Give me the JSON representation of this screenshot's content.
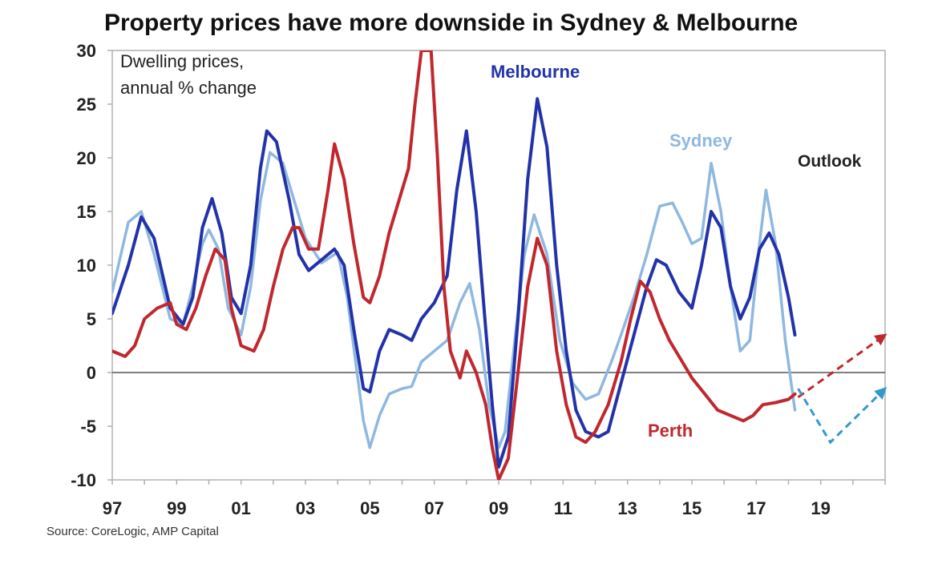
{
  "chart_data": {
    "type": "line",
    "title": "Property prices have more downside in Sydney & Melbourne",
    "note": [
      "Dwelling prices,",
      "annual % change"
    ],
    "source": "Source: CoreLogic, AMP Capital",
    "outlook_label": "Outlook",
    "xlim": [
      1997,
      2021
    ],
    "ylim": [
      -10,
      30
    ],
    "x_ticks": [
      {
        "label": "97",
        "value": 1997
      },
      {
        "label": "99",
        "value": 1999
      },
      {
        "label": "01",
        "value": 2001
      },
      {
        "label": "03",
        "value": 2003
      },
      {
        "label": "05",
        "value": 2005
      },
      {
        "label": "07",
        "value": 2007
      },
      {
        "label": "09",
        "value": 2009
      },
      {
        "label": "11",
        "value": 2011
      },
      {
        "label": "13",
        "value": 2013
      },
      {
        "label": "15",
        "value": 2015
      },
      {
        "label": "17",
        "value": 2017
      },
      {
        "label": "19",
        "value": 2019
      }
    ],
    "y_ticks": [
      30,
      25,
      20,
      15,
      10,
      5,
      0,
      -5,
      -10
    ],
    "series": [
      {
        "name": "Sydney",
        "color": "#8fb8e0",
        "points": [
          [
            1997.0,
            7.5
          ],
          [
            1997.5,
            14.0
          ],
          [
            1997.9,
            15.0
          ],
          [
            1998.3,
            11.0
          ],
          [
            1998.8,
            5.0
          ],
          [
            1999.2,
            4.5
          ],
          [
            1999.5,
            8.0
          ],
          [
            1999.8,
            12.0
          ],
          [
            2000.0,
            13.3
          ],
          [
            2000.3,
            11.5
          ],
          [
            2000.6,
            6.0
          ],
          [
            2001.0,
            3.5
          ],
          [
            2001.3,
            8.0
          ],
          [
            2001.6,
            16.0
          ],
          [
            2001.9,
            20.5
          ],
          [
            2002.3,
            19.5
          ],
          [
            2002.7,
            15.5
          ],
          [
            2003.0,
            12.5
          ],
          [
            2003.5,
            10.2
          ],
          [
            2004.0,
            11.2
          ],
          [
            2004.3,
            7.0
          ],
          [
            2004.6,
            0.0
          ],
          [
            2004.8,
            -4.5
          ],
          [
            2005.0,
            -7.0
          ],
          [
            2005.3,
            -4.0
          ],
          [
            2005.6,
            -2.0
          ],
          [
            2006.0,
            -1.5
          ],
          [
            2006.3,
            -1.3
          ],
          [
            2006.6,
            1.0
          ],
          [
            2007.0,
            2.0
          ],
          [
            2007.4,
            3.0
          ],
          [
            2007.8,
            6.5
          ],
          [
            2008.1,
            8.3
          ],
          [
            2008.4,
            4.0
          ],
          [
            2008.7,
            -3.0
          ],
          [
            2009.0,
            -7.0
          ],
          [
            2009.2,
            -5.5
          ],
          [
            2009.5,
            3.0
          ],
          [
            2009.8,
            11.0
          ],
          [
            2010.1,
            14.7
          ],
          [
            2010.5,
            11.0
          ],
          [
            2010.9,
            3.0
          ],
          [
            2011.3,
            -1.0
          ],
          [
            2011.7,
            -2.5
          ],
          [
            2012.1,
            -2.0
          ],
          [
            2012.5,
            1.0
          ],
          [
            2012.8,
            3.5
          ],
          [
            2013.2,
            7.0
          ],
          [
            2013.6,
            11.0
          ],
          [
            2014.0,
            15.5
          ],
          [
            2014.4,
            15.8
          ],
          [
            2014.7,
            14.0
          ],
          [
            2015.0,
            12.0
          ],
          [
            2015.3,
            12.5
          ],
          [
            2015.6,
            19.5
          ],
          [
            2015.9,
            15.0
          ],
          [
            2016.2,
            8.0
          ],
          [
            2016.5,
            2.0
          ],
          [
            2016.8,
            3.0
          ],
          [
            2017.1,
            12.0
          ],
          [
            2017.3,
            17.0
          ],
          [
            2017.6,
            12.0
          ],
          [
            2017.9,
            3.0
          ],
          [
            2018.2,
            -3.5
          ]
        ]
      },
      {
        "name": "Melbourne",
        "color": "#2233aa",
        "points": [
          [
            1997.0,
            5.5
          ],
          [
            1997.5,
            10.0
          ],
          [
            1997.9,
            14.5
          ],
          [
            1998.3,
            12.5
          ],
          [
            1998.8,
            6.0
          ],
          [
            1999.2,
            4.5
          ],
          [
            1999.5,
            7.0
          ],
          [
            1999.8,
            13.5
          ],
          [
            2000.1,
            16.2
          ],
          [
            2000.4,
            13.0
          ],
          [
            2000.7,
            7.0
          ],
          [
            2001.0,
            5.5
          ],
          [
            2001.3,
            10.0
          ],
          [
            2001.6,
            19.0
          ],
          [
            2001.8,
            22.5
          ],
          [
            2002.1,
            21.5
          ],
          [
            2002.5,
            16.0
          ],
          [
            2002.8,
            11.0
          ],
          [
            2003.1,
            9.5
          ],
          [
            2003.5,
            10.5
          ],
          [
            2003.9,
            11.5
          ],
          [
            2004.2,
            10.0
          ],
          [
            2004.5,
            4.0
          ],
          [
            2004.8,
            -1.5
          ],
          [
            2005.0,
            -1.8
          ],
          [
            2005.3,
            2.0
          ],
          [
            2005.6,
            4.0
          ],
          [
            2006.0,
            3.5
          ],
          [
            2006.3,
            3.0
          ],
          [
            2006.6,
            5.0
          ],
          [
            2007.0,
            6.5
          ],
          [
            2007.4,
            9.0
          ],
          [
            2007.7,
            17.0
          ],
          [
            2008.0,
            22.5
          ],
          [
            2008.3,
            15.0
          ],
          [
            2008.6,
            4.0
          ],
          [
            2008.8,
            -3.0
          ],
          [
            2009.0,
            -8.8
          ],
          [
            2009.3,
            -6.0
          ],
          [
            2009.6,
            5.0
          ],
          [
            2009.9,
            18.0
          ],
          [
            2010.2,
            25.5
          ],
          [
            2010.5,
            21.0
          ],
          [
            2010.8,
            10.0
          ],
          [
            2011.1,
            2.0
          ],
          [
            2011.4,
            -3.5
          ],
          [
            2011.7,
            -5.5
          ],
          [
            2012.1,
            -6.0
          ],
          [
            2012.4,
            -5.5
          ],
          [
            2012.8,
            -1.0
          ],
          [
            2013.2,
            3.5
          ],
          [
            2013.6,
            8.0
          ],
          [
            2013.9,
            10.5
          ],
          [
            2014.2,
            10.0
          ],
          [
            2014.6,
            7.5
          ],
          [
            2015.0,
            6.0
          ],
          [
            2015.3,
            10.0
          ],
          [
            2015.6,
            15.0
          ],
          [
            2015.9,
            13.5
          ],
          [
            2016.2,
            8.0
          ],
          [
            2016.5,
            5.0
          ],
          [
            2016.8,
            7.0
          ],
          [
            2017.1,
            11.5
          ],
          [
            2017.4,
            13.0
          ],
          [
            2017.7,
            11.0
          ],
          [
            2018.0,
            7.0
          ],
          [
            2018.2,
            3.5
          ]
        ]
      },
      {
        "name": "Perth",
        "color": "#c0282d",
        "points": [
          [
            1997.0,
            2.0
          ],
          [
            1997.4,
            1.5
          ],
          [
            1997.7,
            2.5
          ],
          [
            1998.0,
            5.0
          ],
          [
            1998.4,
            6.0
          ],
          [
            1998.8,
            6.5
          ],
          [
            1999.0,
            4.5
          ],
          [
            1999.3,
            4.0
          ],
          [
            1999.6,
            6.0
          ],
          [
            1999.9,
            9.0
          ],
          [
            2000.2,
            11.5
          ],
          [
            2000.5,
            10.5
          ],
          [
            2000.7,
            6.0
          ],
          [
            2001.0,
            2.5
          ],
          [
            2001.4,
            2.0
          ],
          [
            2001.7,
            4.0
          ],
          [
            2002.0,
            8.0
          ],
          [
            2002.3,
            11.5
          ],
          [
            2002.6,
            13.5
          ],
          [
            2002.8,
            13.5
          ],
          [
            2003.1,
            11.5
          ],
          [
            2003.4,
            11.5
          ],
          [
            2003.7,
            17.0
          ],
          [
            2003.9,
            21.3
          ],
          [
            2004.2,
            18.0
          ],
          [
            2004.5,
            12.0
          ],
          [
            2004.8,
            7.0
          ],
          [
            2005.0,
            6.5
          ],
          [
            2005.3,
            9.0
          ],
          [
            2005.6,
            13.0
          ],
          [
            2005.9,
            16.0
          ],
          [
            2006.2,
            19.0
          ],
          [
            2006.4,
            25.0
          ],
          [
            2006.6,
            30.0
          ],
          [
            2006.9,
            30.0
          ],
          [
            2007.1,
            20.0
          ],
          [
            2007.3,
            8.0
          ],
          [
            2007.5,
            2.0
          ],
          [
            2007.8,
            -0.5
          ],
          [
            2008.0,
            2.0
          ],
          [
            2008.3,
            0.0
          ],
          [
            2008.6,
            -3.0
          ],
          [
            2008.8,
            -7.0
          ],
          [
            2009.0,
            -10.0
          ],
          [
            2009.3,
            -8.0
          ],
          [
            2009.6,
            0.0
          ],
          [
            2009.9,
            8.0
          ],
          [
            2010.2,
            12.5
          ],
          [
            2010.5,
            10.0
          ],
          [
            2010.8,
            2.0
          ],
          [
            2011.1,
            -3.0
          ],
          [
            2011.4,
            -6.0
          ],
          [
            2011.7,
            -6.5
          ],
          [
            2012.0,
            -5.5
          ],
          [
            2012.4,
            -3.0
          ],
          [
            2012.8,
            1.0
          ],
          [
            2013.1,
            5.0
          ],
          [
            2013.4,
            8.5
          ],
          [
            2013.7,
            7.5
          ],
          [
            2014.0,
            5.0
          ],
          [
            2014.3,
            3.0
          ],
          [
            2014.7,
            1.0
          ],
          [
            2015.0,
            -0.5
          ],
          [
            2015.4,
            -2.0
          ],
          [
            2015.8,
            -3.5
          ],
          [
            2016.2,
            -4.0
          ],
          [
            2016.6,
            -4.5
          ],
          [
            2016.9,
            -4.0
          ],
          [
            2017.2,
            -3.0
          ],
          [
            2017.6,
            -2.8
          ],
          [
            2018.0,
            -2.5
          ],
          [
            2018.2,
            -2.0
          ]
        ]
      }
    ],
    "outlook": [
      {
        "name": "Perth",
        "color": "#c0282d",
        "points": [
          [
            2018.3,
            -2.3
          ],
          [
            2021.0,
            3.5
          ]
        ]
      },
      {
        "name": "Sydney & Melbourne",
        "color": "#3399cc",
        "points": [
          [
            2018.3,
            -1.5
          ],
          [
            2019.3,
            -6.5
          ],
          [
            2021.0,
            -1.5
          ]
        ]
      }
    ]
  }
}
